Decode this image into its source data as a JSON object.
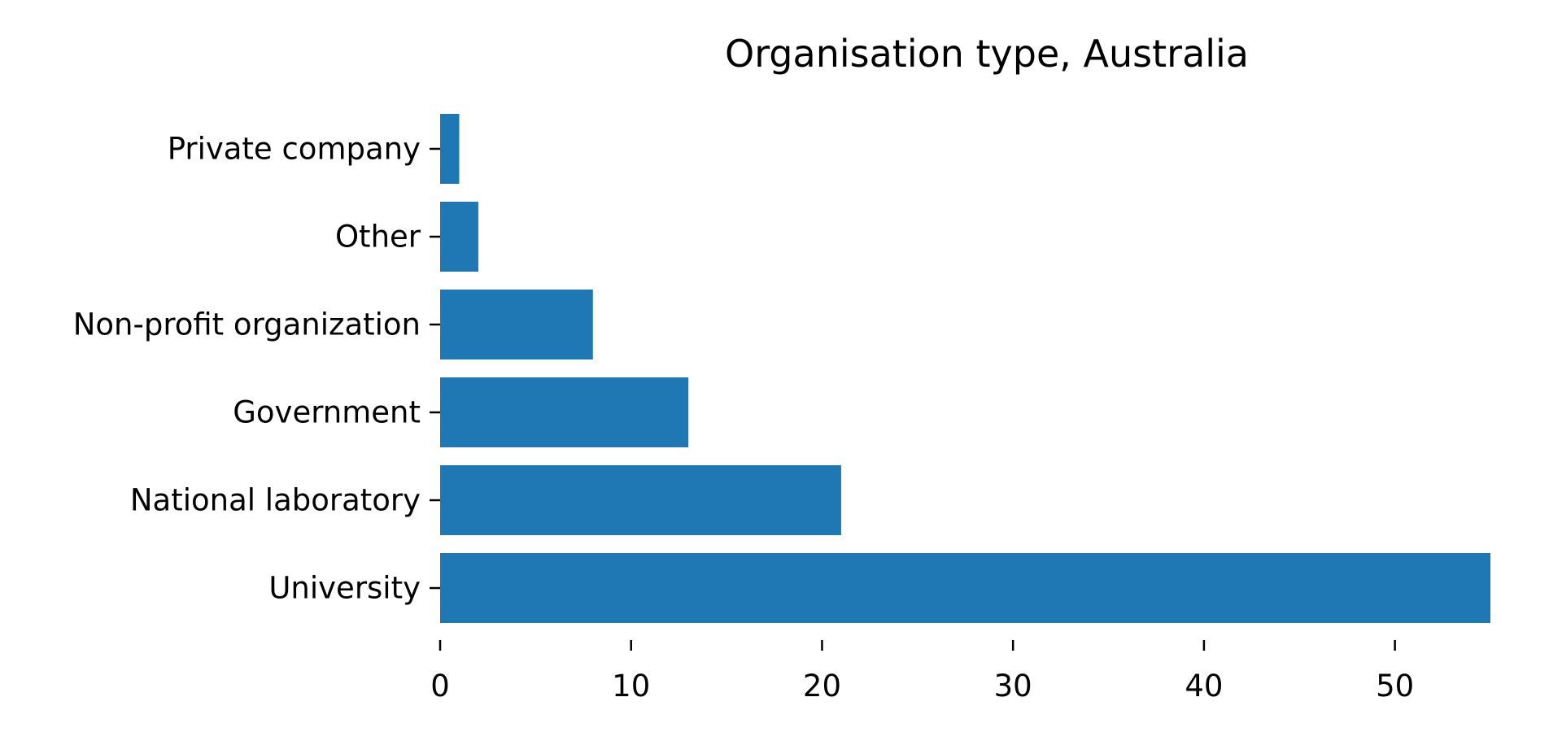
{
  "chart_data": {
    "type": "bar",
    "orientation": "horizontal",
    "title": "Organisation type, Australia",
    "xlabel": "",
    "ylabel": "",
    "categories": [
      "University",
      "National laboratory",
      "Government",
      "Non-profit organization",
      "Other",
      "Private company"
    ],
    "values": [
      55,
      21,
      13,
      8,
      2,
      1
    ],
    "xlim": [
      0,
      55
    ],
    "xticks": [
      0,
      10,
      20,
      30,
      40,
      50
    ],
    "grid": false,
    "legend": "none",
    "bar_color": "#1f77b4"
  }
}
